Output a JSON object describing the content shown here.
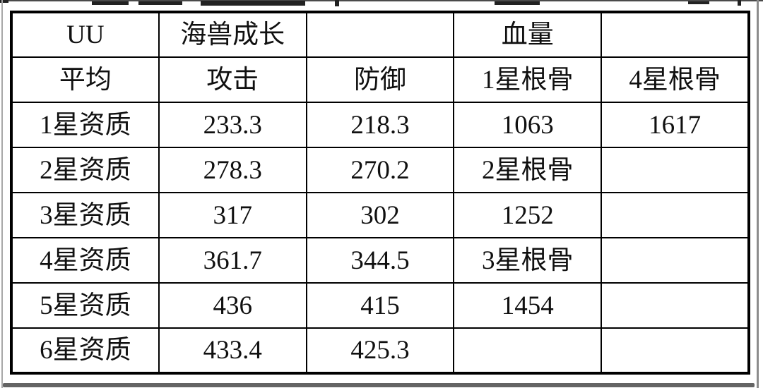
{
  "theme": {
    "page-bg": "#ffffff",
    "line-color": "#000000",
    "text-color": "#101010",
    "edge-gray": "#646464"
  },
  "table": {
    "header_row_1": [
      "UU",
      "海兽成长",
      "",
      "血量",
      ""
    ],
    "header_row_2": [
      "平均",
      "攻击",
      "防御",
      "1星根骨",
      "4星根骨"
    ],
    "rows": [
      [
        "1星资质",
        "233.3",
        "218.3",
        "1063",
        "1617"
      ],
      [
        "2星资质",
        "278.3",
        "270.2",
        "2星根骨",
        ""
      ],
      [
        "3星资质",
        "317",
        "302",
        "1252",
        ""
      ],
      [
        "4星资质",
        "361.7",
        "344.5",
        "3星根骨",
        ""
      ],
      [
        "5星资质",
        "436",
        "415",
        "1454",
        ""
      ],
      [
        "6星资质",
        "433.4",
        "425.3",
        "",
        ""
      ]
    ]
  }
}
